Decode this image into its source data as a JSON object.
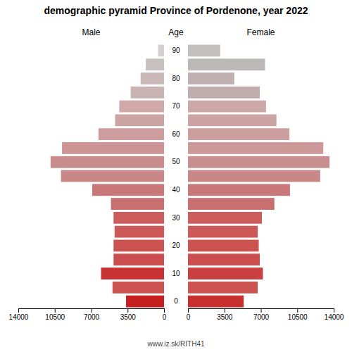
{
  "chart_data": {
    "type": "bar",
    "orientation": "horizontal",
    "title": "demographic pyramid Province of Pordenone, year 2022",
    "annotations": [
      "Age",
      "www.iz.sk/RITH41"
    ],
    "categories": [
      "90",
      null,
      "80",
      null,
      "70",
      null,
      "60",
      null,
      "50",
      null,
      "40",
      null,
      "30",
      null,
      "20",
      null,
      "10",
      null,
      "0"
    ],
    "series": [
      {
        "name": "Male",
        "values": [
          580,
          1750,
          2250,
          3200,
          4300,
          4700,
          6300,
          9800,
          10900,
          9900,
          6900,
          5100,
          4850,
          4750,
          4850,
          4850,
          6050,
          4950,
          3650
        ],
        "colors": [
          "#d4d0d0",
          "#c8c0c0",
          "#cbb8b8",
          "#c8b2b2",
          "#d0a8a8",
          "#cda4a4",
          "#cd9c9c",
          "#cc9494",
          "#c98c8c",
          "#c88888",
          "#c87878",
          "#c87070",
          "#cd5c5c",
          "#cd5858",
          "#cd5252",
          "#cd4e4e",
          "#c83232",
          "#cd5252",
          "#c42020"
        ]
      },
      {
        "name": "Female",
        "values": [
          3100,
          7400,
          4450,
          6900,
          7500,
          8500,
          9750,
          13000,
          13600,
          12700,
          9800,
          8300,
          7100,
          6700,
          6800,
          6900,
          7200,
          6700,
          5350
        ],
        "colors": [
          "#c4c0c0",
          "#bcb8b8",
          "#c0b0b0",
          "#c0acac",
          "#cca8a8",
          "#cca4a4",
          "#cc9e9e",
          "#cc9898",
          "#c88e8e",
          "#c88888",
          "#c87878",
          "#c87070",
          "#cd5c5c",
          "#cd5858",
          "#cd5252",
          "#cd4e4e",
          "#c84040",
          "#cd5252",
          "#c83030"
        ]
      }
    ],
    "xlim": [
      0,
      14000
    ],
    "xticks": [
      0,
      3500,
      7000,
      10500,
      14000
    ],
    "grid": false
  }
}
